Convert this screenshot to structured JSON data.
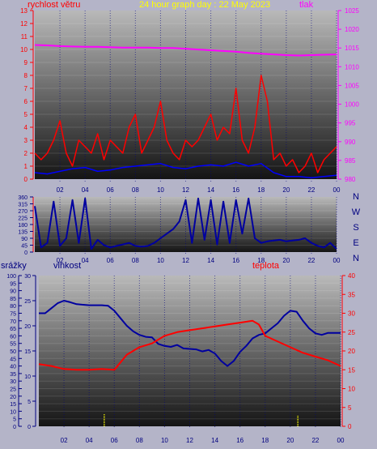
{
  "colors": {
    "background": "#b4b4c8",
    "wind": "#ff0000",
    "wind_avg": "#0000ff",
    "pressure": "#ff00ff",
    "direction": "#0000a0",
    "humidity": "#0000a0",
    "temperature": "#ff0000",
    "rain": "#ffff00",
    "title": "#ffff00",
    "axis_red": "#ff0000",
    "axis_magenta": "#ff00ff",
    "axis_navy": "#000080"
  },
  "chart_data": [
    {
      "id": "wind-pressure",
      "type": "line",
      "title": "24 hour graph day : 22 May 2023",
      "left_label": "rychlost větru",
      "right_label": "tlak",
      "x_ticks": [
        "02",
        "04",
        "06",
        "08",
        "10",
        "12",
        "14",
        "16",
        "18",
        "20",
        "22",
        "00"
      ],
      "y_left": {
        "min": 0,
        "max": 13,
        "ticks": [
          "0",
          "1",
          "2",
          "3",
          "4",
          "5",
          "6",
          "7",
          "8",
          "9",
          "10",
          "11",
          "12",
          "13"
        ]
      },
      "y_right": {
        "min": 980,
        "max": 1025,
        "ticks": [
          "980",
          "985",
          "990",
          "995",
          "1000",
          "1005",
          "1010",
          "1015",
          "1020",
          "1025"
        ]
      },
      "series": [
        {
          "key": "pressure",
          "axis": "right",
          "x": [
            0,
            1,
            2,
            3,
            4,
            5,
            6,
            7,
            8,
            9,
            10,
            11,
            12,
            13,
            14,
            15,
            16,
            17,
            18,
            19,
            20,
            21,
            22,
            23,
            24
          ],
          "values": [
            1015.8,
            1015.7,
            1015.5,
            1015.4,
            1015.3,
            1015.3,
            1015.2,
            1015.1,
            1015.1,
            1015.1,
            1015.0,
            1015.0,
            1014.8,
            1014.6,
            1014.4,
            1014.2,
            1014.0,
            1013.7,
            1013.5,
            1013.3,
            1013.1,
            1013.0,
            1013.1,
            1013.2,
            1013.3
          ]
        },
        {
          "key": "wind_gust",
          "axis": "left",
          "x": [
            0,
            0.5,
            1,
            1.5,
            2,
            2.5,
            3,
            3.5,
            4,
            4.5,
            5,
            5.5,
            6,
            6.5,
            7,
            7.5,
            8,
            8.5,
            9,
            9.5,
            10,
            10.5,
            11,
            11.5,
            12,
            12.5,
            13,
            13.5,
            14,
            14.5,
            15,
            15.5,
            16,
            16.5,
            17,
            17.5,
            18,
            18.5,
            19,
            19.5,
            20,
            20.5,
            21,
            21.5,
            22,
            22.5,
            23,
            23.5,
            24
          ],
          "values": [
            2,
            1.5,
            2,
            3,
            4.5,
            2,
            1,
            3,
            2.5,
            2,
            3.5,
            1.5,
            3,
            2.5,
            2,
            4,
            5,
            2,
            3,
            4,
            6,
            3,
            2,
            1.5,
            3,
            2.5,
            3,
            4,
            5,
            3,
            4,
            3.5,
            7,
            3,
            2,
            4,
            8,
            6,
            1.5,
            2,
            1,
            1.5,
            0.5,
            1,
            2,
            0.5,
            1.5,
            2,
            2.5
          ]
        },
        {
          "key": "wind_avg",
          "axis": "left",
          "x": [
            0,
            1,
            2,
            3,
            4,
            5,
            6,
            7,
            8,
            9,
            10,
            11,
            12,
            13,
            14,
            15,
            16,
            17,
            18,
            19,
            20,
            21,
            22,
            23,
            24
          ],
          "values": [
            0.5,
            0.4,
            0.6,
            0.8,
            0.9,
            0.6,
            0.7,
            0.9,
            1.0,
            1.1,
            1.2,
            0.9,
            0.8,
            1.0,
            1.1,
            1.0,
            1.3,
            1.0,
            1.2,
            0.5,
            0.2,
            0.2,
            0.1,
            0.2,
            0.3
          ]
        }
      ]
    },
    {
      "id": "wind-direction",
      "type": "line",
      "x_ticks": [
        "02",
        "04",
        "06",
        "08",
        "10",
        "12",
        "14",
        "16",
        "18",
        "20",
        "22",
        "00"
      ],
      "y_left": {
        "min": 0,
        "max": 360,
        "ticks": [
          "0",
          "45",
          "90",
          "135",
          "180",
          "225",
          "270",
          "315",
          "360"
        ]
      },
      "compass": [
        "N",
        "W",
        "S",
        "E",
        "N"
      ],
      "series": [
        {
          "key": "direction",
          "x": [
            0,
            0.5,
            1,
            1.5,
            2,
            2.5,
            3,
            3.5,
            4,
            4.5,
            5,
            5.5,
            6,
            6.5,
            7,
            7.5,
            8,
            8.5,
            9,
            9.5,
            10,
            10.5,
            11,
            11.5,
            12,
            12.5,
            13,
            13.5,
            14,
            14.5,
            15,
            15.5,
            16,
            16.5,
            17,
            17.5,
            18,
            18.5,
            19,
            19.5,
            20,
            20.5,
            21,
            21.5,
            22,
            22.5,
            23,
            23.5,
            24
          ],
          "values": [
            300,
            30,
            60,
            330,
            40,
            90,
            340,
            60,
            350,
            20,
            80,
            45,
            30,
            40,
            50,
            60,
            40,
            35,
            40,
            60,
            90,
            120,
            150,
            200,
            340,
            60,
            350,
            80,
            340,
            50,
            330,
            60,
            340,
            120,
            350,
            90,
            60,
            70,
            75,
            80,
            70,
            75,
            80,
            90,
            60,
            40,
            30,
            60,
            20
          ]
        }
      ]
    },
    {
      "id": "rain-humidity-temp",
      "type": "line",
      "left_label": "srážky",
      "mid_label": "vlhkost",
      "right_label": "teplota",
      "x_ticks": [
        "02",
        "04",
        "06",
        "08",
        "10",
        "12",
        "14",
        "16",
        "18",
        "20",
        "22",
        "00"
      ],
      "y_rain": {
        "min": 0,
        "max": 100,
        "ticks": [
          "0",
          "5",
          "10",
          "15",
          "20",
          "25",
          "30",
          "35",
          "40",
          "45",
          "50",
          "55",
          "60",
          "65",
          "70",
          "75",
          "80",
          "85",
          "90",
          "95",
          "100"
        ]
      },
      "y_humidity": {
        "min": 0,
        "max": 30,
        "ticks": [
          "0",
          "5",
          "10",
          "15",
          "20",
          "25",
          "30"
        ]
      },
      "y_temp": {
        "min": 0,
        "max": 40,
        "ticks": [
          "0",
          "5",
          "10",
          "15",
          "20",
          "25",
          "30",
          "35",
          "40"
        ]
      },
      "series": [
        {
          "key": "humidity",
          "axis": "humidity",
          "x": [
            0,
            0.5,
            1,
            1.5,
            2,
            2.5,
            3,
            3.5,
            4,
            4.5,
            5,
            5.5,
            6,
            6.5,
            7,
            7.5,
            8,
            8.5,
            9,
            9.5,
            10,
            10.5,
            11,
            11.5,
            12,
            12.5,
            13,
            13.5,
            14,
            14.5,
            15,
            15.5,
            16,
            16.5,
            17,
            17.5,
            18,
            18.5,
            19,
            19.5,
            20,
            20.5,
            21,
            21.5,
            22,
            22.5,
            23,
            23.5,
            24
          ],
          "values": [
            22.5,
            22.5,
            23.5,
            24.5,
            25,
            24.7,
            24.3,
            24.2,
            24.1,
            24.1,
            24.1,
            24,
            23,
            21.5,
            20,
            18.9,
            18.2,
            17.8,
            17.7,
            16.4,
            16,
            15.8,
            16.2,
            15.5,
            15.4,
            15.3,
            14.9,
            15.2,
            14.5,
            13,
            12,
            13,
            14.8,
            16,
            17.5,
            18.2,
            18.5,
            19.5,
            20.5,
            22,
            23,
            22.8,
            21,
            19.5,
            18.5,
            18.2,
            18.6,
            18.6,
            18.6
          ]
        },
        {
          "key": "temperature",
          "axis": "temp",
          "x": [
            0,
            1,
            2,
            3,
            4,
            5,
            6,
            7,
            8,
            9,
            10,
            11,
            12,
            13,
            14,
            15,
            16,
            17,
            17.5,
            18,
            19,
            20,
            21,
            22,
            23,
            24
          ],
          "values": [
            16.5,
            16,
            15.2,
            15,
            15,
            15.2,
            15,
            19,
            21,
            22,
            24,
            25,
            25.5,
            26,
            26.5,
            27,
            27.5,
            28,
            27,
            24,
            22.5,
            21,
            19.5,
            18.5,
            17.5,
            16
          ]
        },
        {
          "key": "rain",
          "axis": "rain",
          "x": [
            5.2,
            20.6
          ],
          "values": [
            8,
            7
          ]
        }
      ]
    }
  ]
}
